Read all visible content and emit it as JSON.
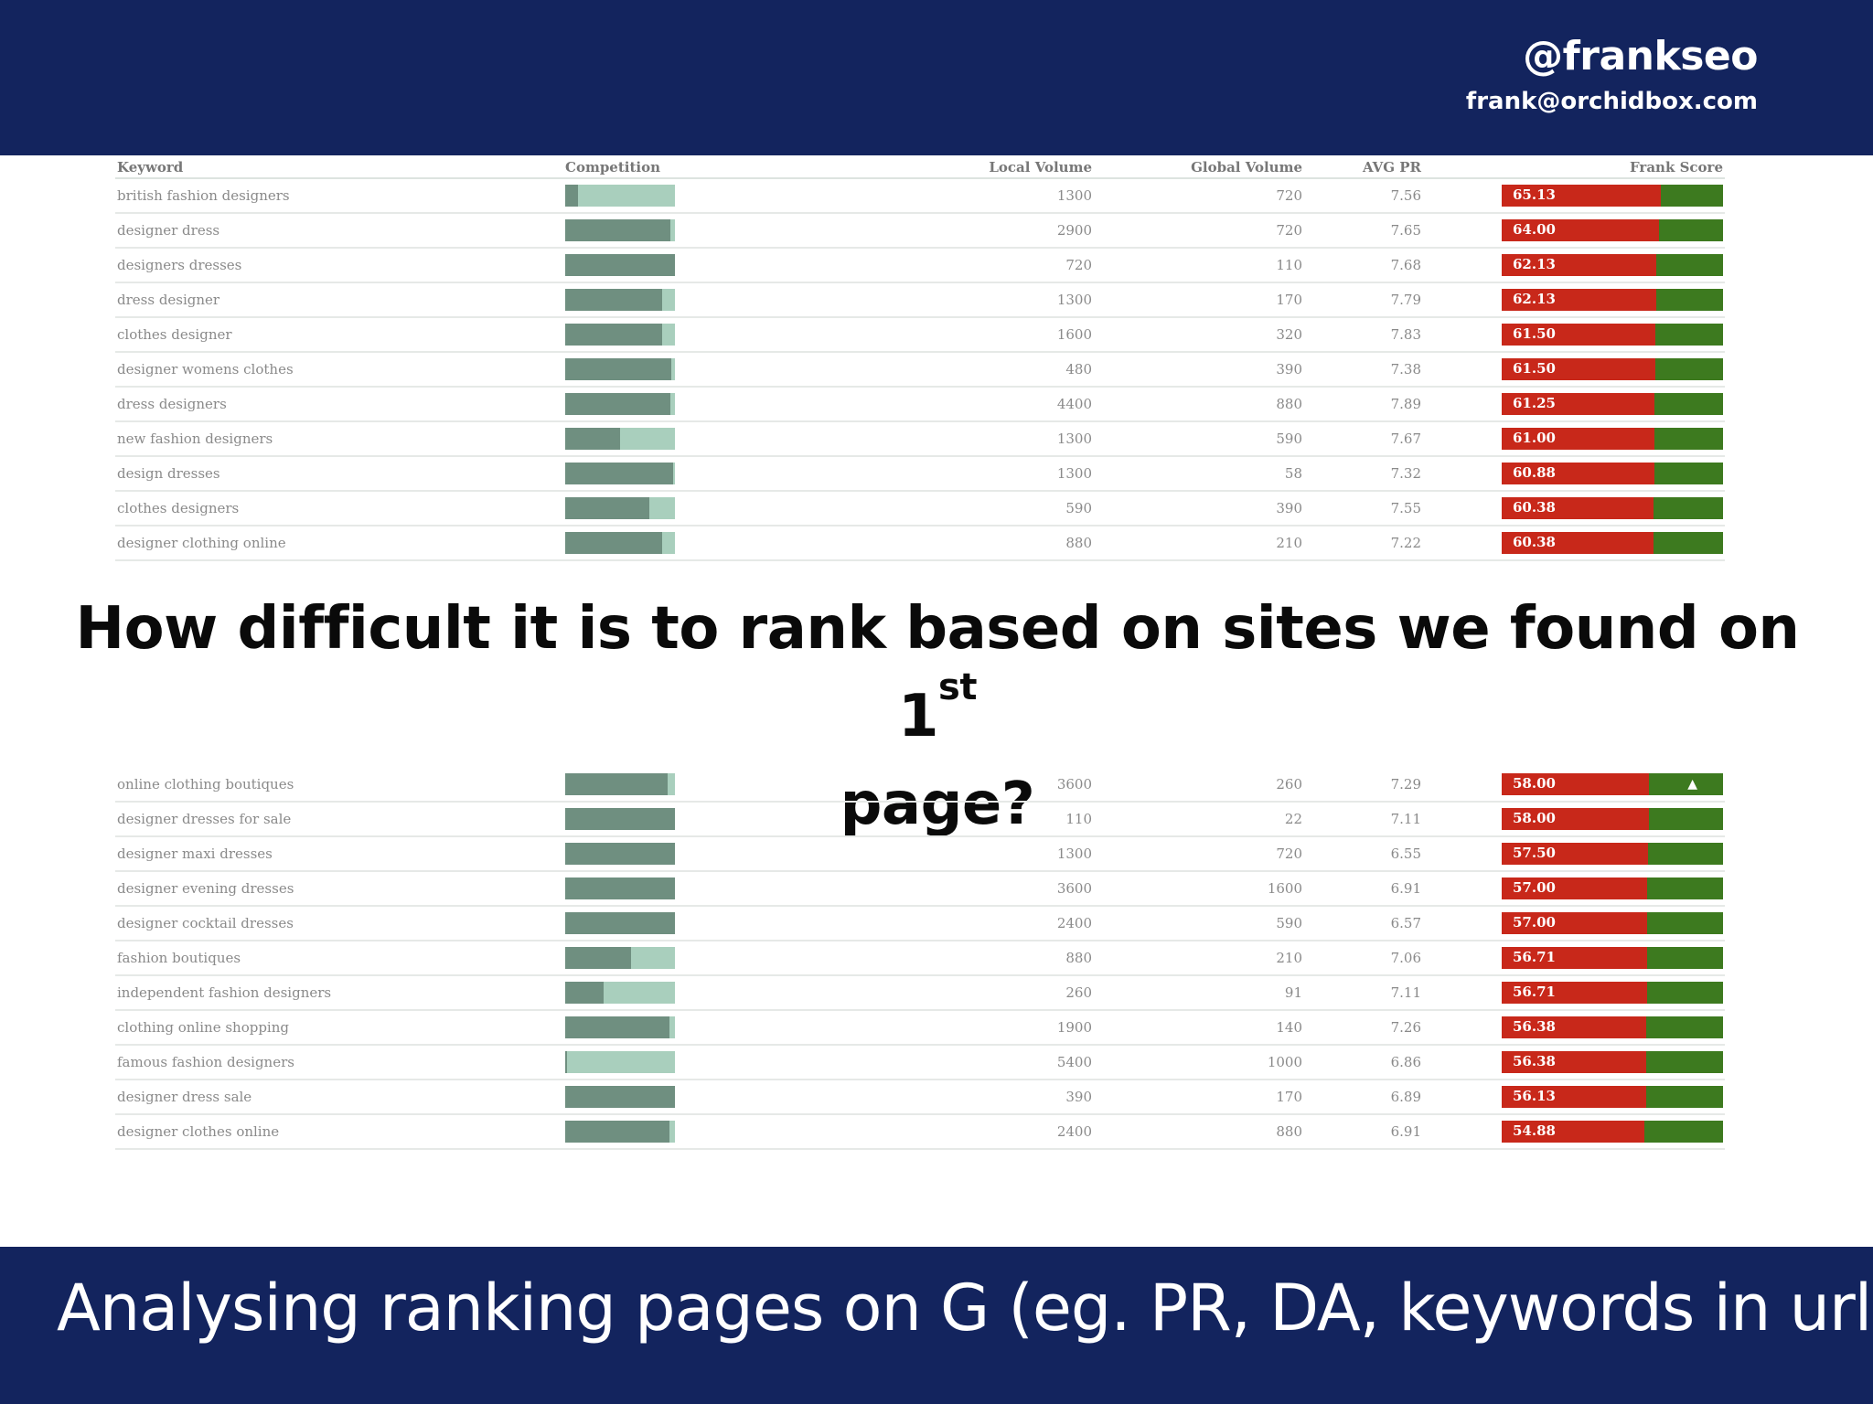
{
  "header": {
    "handle": "@frankseo",
    "email": "frank@orchidbox.com"
  },
  "question": {
    "text": "How difficult it is to rank based on sites we found on 1",
    "sup": "st",
    "tail": "page?"
  },
  "footer": {
    "text": "Analysing ranking pages on G (eg. PR, DA, keywords in url)"
  },
  "columns": [
    "Keyword",
    "Competition",
    "Local Volume",
    "Global Volume",
    "AVG PR",
    "Frank Score"
  ],
  "table_top": [
    {
      "keyword": "british fashion designers",
      "competition": 0.12,
      "local": "1300",
      "global": "720",
      "pr": "7.56",
      "score": "65.13",
      "score_value": 65.13
    },
    {
      "keyword": "designer dress",
      "competition": 0.96,
      "local": "2900",
      "global": "720",
      "pr": "7.65",
      "score": "64.00",
      "score_value": 64.0
    },
    {
      "keyword": "designers dresses",
      "competition": 1.0,
      "local": "720",
      "global": "110",
      "pr": "7.68",
      "score": "62.13",
      "score_value": 62.13
    },
    {
      "keyword": "dress designer",
      "competition": 0.88,
      "local": "1300",
      "global": "170",
      "pr": "7.79",
      "score": "62.13",
      "score_value": 62.13
    },
    {
      "keyword": "clothes designer",
      "competition": 0.88,
      "local": "1600",
      "global": "320",
      "pr": "7.83",
      "score": "61.50",
      "score_value": 61.5
    },
    {
      "keyword": "designer womens clothes",
      "competition": 0.97,
      "local": "480",
      "global": "390",
      "pr": "7.38",
      "score": "61.50",
      "score_value": 61.5
    },
    {
      "keyword": "dress designers",
      "competition": 0.96,
      "local": "4400",
      "global": "880",
      "pr": "7.89",
      "score": "61.25",
      "score_value": 61.25
    },
    {
      "keyword": "new fashion designers",
      "competition": 0.5,
      "local": "1300",
      "global": "590",
      "pr": "7.67",
      "score": "61.00",
      "score_value": 61.0
    },
    {
      "keyword": "design dresses",
      "competition": 0.98,
      "local": "1300",
      "global": "58",
      "pr": "7.32",
      "score": "60.88",
      "score_value": 60.88
    },
    {
      "keyword": "clothes designers",
      "competition": 0.77,
      "local": "590",
      "global": "390",
      "pr": "7.55",
      "score": "60.38",
      "score_value": 60.38
    },
    {
      "keyword": "designer clothing online",
      "competition": 0.88,
      "local": "880",
      "global": "210",
      "pr": "7.22",
      "score": "60.38",
      "score_value": 60.38
    }
  ],
  "table_bottom": [
    {
      "keyword": "online clothing boutiques",
      "competition": 0.93,
      "local": "3600",
      "global": "260",
      "pr": "7.29",
      "score": "58.00",
      "score_value": 58.0
    },
    {
      "keyword": "designer dresses for sale",
      "competition": 1.0,
      "local": "110",
      "global": "22",
      "pr": "7.11",
      "score": "58.00",
      "score_value": 58.0
    },
    {
      "keyword": "designer maxi dresses",
      "competition": 1.0,
      "local": "1300",
      "global": "720",
      "pr": "6.55",
      "score": "57.50",
      "score_value": 57.5
    },
    {
      "keyword": "designer evening dresses",
      "competition": 1.0,
      "local": "3600",
      "global": "1600",
      "pr": "6.91",
      "score": "57.00",
      "score_value": 57.0
    },
    {
      "keyword": "designer cocktail dresses",
      "competition": 1.0,
      "local": "2400",
      "global": "590",
      "pr": "6.57",
      "score": "57.00",
      "score_value": 57.0
    },
    {
      "keyword": "fashion boutiques",
      "competition": 0.6,
      "local": "880",
      "global": "210",
      "pr": "7.06",
      "score": "56.71",
      "score_value": 56.71
    },
    {
      "keyword": "independent fashion designers",
      "competition": 0.35,
      "local": "260",
      "global": "91",
      "pr": "7.11",
      "score": "56.71",
      "score_value": 56.71
    },
    {
      "keyword": "clothing online shopping",
      "competition": 0.95,
      "local": "1900",
      "global": "140",
      "pr": "7.26",
      "score": "56.38",
      "score_value": 56.38
    },
    {
      "keyword": "famous fashion designers",
      "competition": 0.02,
      "local": "5400",
      "global": "1000",
      "pr": "6.86",
      "score": "56.38",
      "score_value": 56.38
    },
    {
      "keyword": "designer dress sale",
      "competition": 1.0,
      "local": "390",
      "global": "170",
      "pr": "6.89",
      "score": "56.13",
      "score_value": 56.13
    },
    {
      "keyword": "designer clothes online",
      "competition": 0.95,
      "local": "2400",
      "global": "880",
      "pr": "6.91",
      "score": "54.88",
      "score_value": 54.88
    }
  ],
  "colors": {
    "header_bg": "#13245e",
    "score_red": "#c8281a",
    "score_green": "#3d7a1f",
    "comp_dark": "#6f8f80",
    "comp_light": "#a9cfbd"
  }
}
